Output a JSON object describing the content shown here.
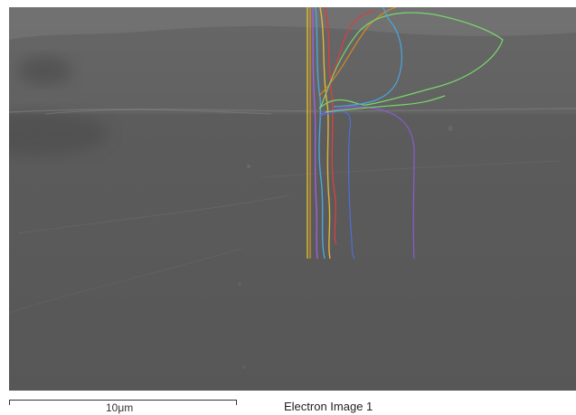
{
  "image": {
    "caption": "Electron Image 1",
    "scale_label": "10μm"
  },
  "colors": {
    "background": "#ffffff",
    "surface_gray": "#5b5b5b",
    "upper_gray": "#666666",
    "trace_yellow": "#d8c22f",
    "trace_orange": "#d78a1e",
    "trace_red": "#d84040",
    "trace_green": "#79d56d",
    "trace_cyan": "#4aa6db",
    "trace_blue": "#4f6fd9",
    "trace_violet": "#8b5bd2"
  },
  "icons": {
    "scale": "scale-bar-icon"
  }
}
